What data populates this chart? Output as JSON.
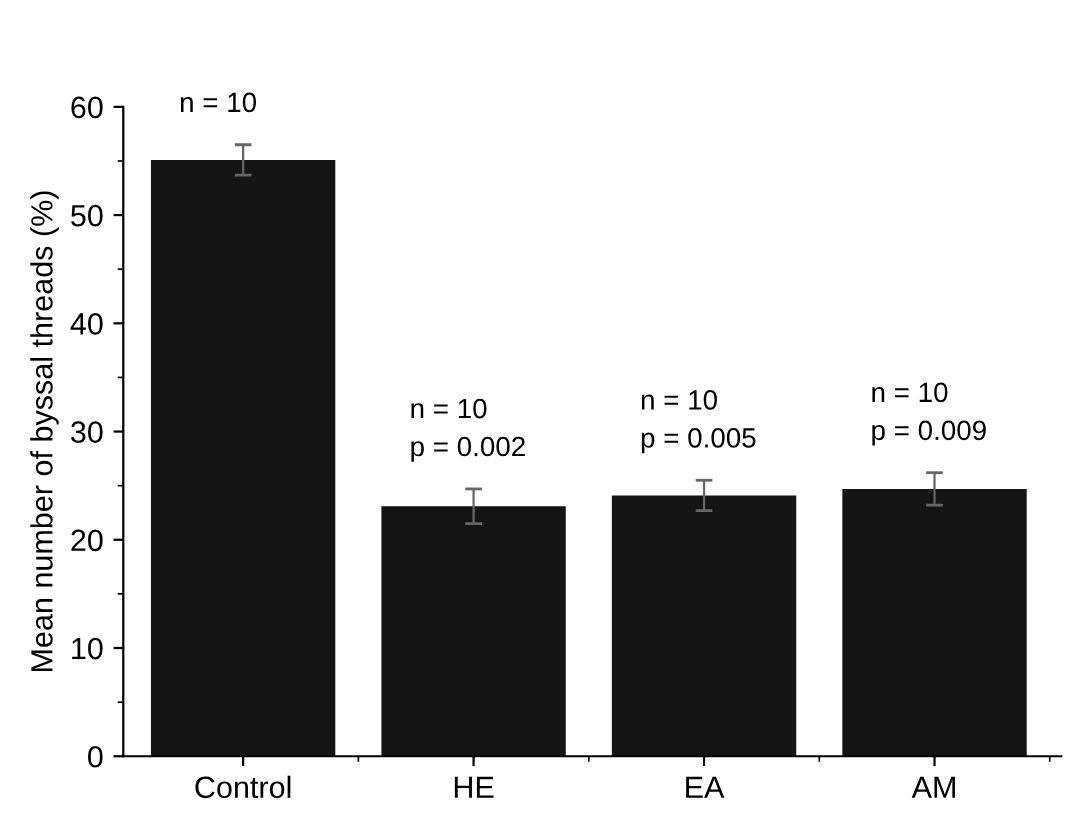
{
  "chart_data": {
    "type": "bar",
    "ylabel": "Mean number of byssal threads (%)",
    "categories": [
      "Control",
      "HE",
      "EA",
      "AM"
    ],
    "values": [
      55.1,
      23.1,
      24.1,
      24.7
    ],
    "errors": [
      1.4,
      1.6,
      1.4,
      1.5
    ],
    "color": "#141414",
    "ylim": [
      0,
      60
    ],
    "yticks": [
      0,
      10,
      20,
      30,
      40,
      50,
      60
    ],
    "grid": false,
    "legend": false,
    "annotations": [
      "n = 10",
      "n = 10\np = 0.002",
      "n = 10\np = 0.005",
      "n = 10\np = 0.009"
    ]
  }
}
